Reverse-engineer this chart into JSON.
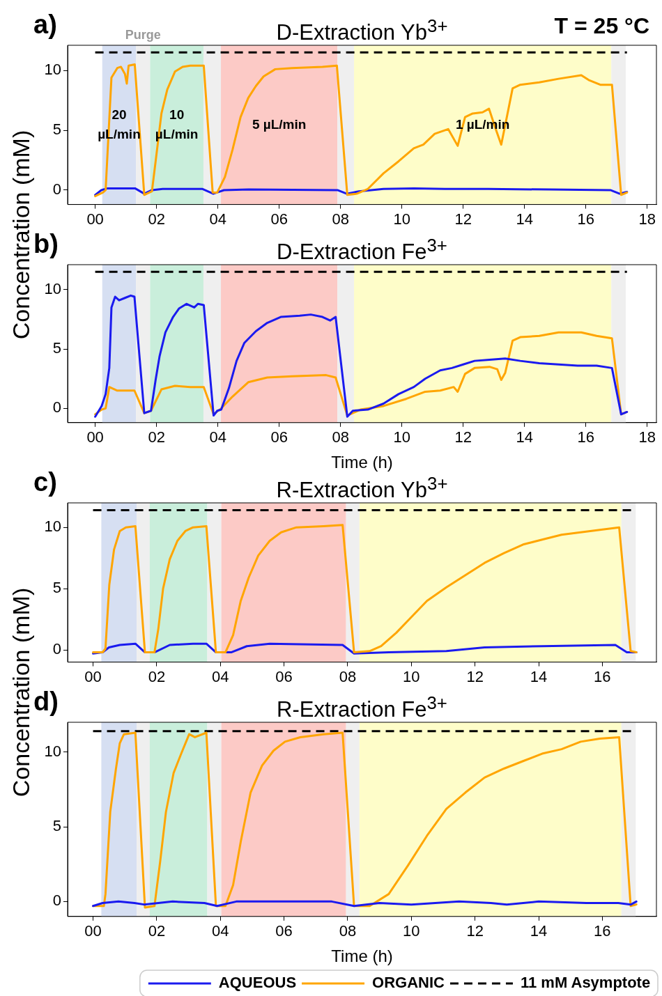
{
  "chart_data": [
    {
      "type": "line",
      "title": "D-Extraction Yb$^{3+}$",
      "ylabel": "Concentration (mM)",
      "annotations": [
        "a)",
        "T = 25 °C"
      ],
      "xlim": [
        -0.9,
        18.3
      ],
      "ylim": [
        -1.2,
        12.1
      ],
      "xticks": [
        {
          "value": 0,
          "label": "00"
        },
        {
          "value": 2,
          "label": "02"
        },
        {
          "value": 4,
          "label": "04"
        },
        {
          "value": 6,
          "label": "06"
        },
        {
          "value": 8,
          "label": "08"
        },
        10,
        12,
        14,
        16,
        18
      ],
      "yticks": [
        0,
        5,
        10
      ],
      "grid": false,
      "legend": false,
      "marker": "none",
      "line_style": "solid",
      "bands": [
        {
          "axis": "x",
          "from": 0.23,
          "to": 1.33,
          "color": "#d6dff2",
          "label": "20 µL/min"
        },
        {
          "axis": "x",
          "from": 1.33,
          "to": 1.79,
          "color": "#efefef",
          "label": "Purge"
        },
        {
          "axis": "x",
          "from": 1.79,
          "to": 3.53,
          "color": "#c9eedb",
          "label": "10 µL/min"
        },
        {
          "axis": "x",
          "from": 3.53,
          "to": 4.1,
          "color": "#efefef"
        },
        {
          "axis": "x",
          "from": 4.1,
          "to": 7.9,
          "color": "#fccac6",
          "label": "5 µL/min"
        },
        {
          "axis": "x",
          "from": 7.9,
          "to": 8.44,
          "color": "#efefef"
        },
        {
          "axis": "x",
          "from": 8.44,
          "to": 16.83,
          "color": "#fefdc9",
          "label": "1 µL/min"
        },
        {
          "axis": "x",
          "from": 16.83,
          "to": 17.3,
          "color": "#efefef"
        }
      ],
      "ref_lines": [
        {
          "axis": "y",
          "value": 11.5,
          "color": "#000000",
          "line_style": "dashed"
        }
      ],
      "series": [
        {
          "color": "#ffa500",
          "x": [
            0,
            0.25,
            0.34,
            0.53,
            0.72,
            0.84,
            0.97,
            1.03,
            1.09,
            1.29,
            1.6,
            1.85,
            1.97,
            2.16,
            2.35,
            2.6,
            2.85,
            3.1,
            3.54,
            3.83,
            3.98,
            4.23,
            4.48,
            4.74,
            4.99,
            5.24,
            5.49,
            5.87,
            6.42,
            7.41,
            7.88,
            8.22,
            8.53,
            8.89,
            9.4,
            9.89,
            10.39,
            10.7,
            11.07,
            11.51,
            11.82,
            12.06,
            12.31,
            12.63,
            12.84,
            13.06,
            13.24,
            13.43,
            13.61,
            13.86,
            14.48,
            15.11,
            15.85,
            16.09,
            16.47,
            16.85,
            17.15,
            17.34
          ],
          "values": [
            -0.5,
            -0.2,
            0,
            9.4,
            10.2,
            10.3,
            9.7,
            8.9,
            10.4,
            10.5,
            -0.4,
            -0.1,
            2.4,
            6.4,
            8.4,
            9.9,
            10.3,
            10.4,
            10.4,
            -0.2,
            -0.2,
            1.1,
            3.4,
            6.1,
            7.7,
            8.7,
            9.5,
            10.1,
            10.2,
            10.3,
            10.4,
            -0.4,
            -0.3,
            0.1,
            1.4,
            2.4,
            3.5,
            3.8,
            4.7,
            5.1,
            3.7,
            6.1,
            6.4,
            6.5,
            6.8,
            5.1,
            3.8,
            6.2,
            8.5,
            8.8,
            9.0,
            9.3,
            9.6,
            9.2,
            8.8,
            8.8,
            -0.4,
            -0.2
          ]
        },
        {
          "color": "#1a1aef",
          "x": [
            0,
            0.2,
            0.4,
            1.3,
            1.6,
            1.85,
            2.2,
            3.5,
            3.85,
            4.2,
            5,
            7.9,
            8.2,
            8.6,
            9.4,
            10.4,
            11.4,
            12.8,
            14.8,
            16.8,
            17.1,
            17.34
          ],
          "values": [
            -0.4,
            0,
            0.15,
            0.15,
            -0.3,
            0,
            0.1,
            0.1,
            -0.3,
            0,
            0.05,
            0,
            -0.3,
            -0.1,
            0.1,
            0.15,
            0.1,
            0.1,
            0.05,
            0,
            -0.3,
            -0.15
          ]
        }
      ]
    },
    {
      "type": "line",
      "title": "D-Extraction Fe$^{3+}$",
      "xlabel": "Time (h)",
      "annotations": [
        "b)"
      ],
      "xlim": [
        -0.9,
        18.3
      ],
      "ylim": [
        -1.2,
        12.1
      ],
      "xticks": [
        {
          "value": 0,
          "label": "00"
        },
        {
          "value": 2,
          "label": "02"
        },
        {
          "value": 4,
          "label": "04"
        },
        {
          "value": 6,
          "label": "06"
        },
        {
          "value": 8,
          "label": "08"
        },
        10,
        12,
        14,
        16,
        18
      ],
      "yticks": [
        0,
        5,
        10
      ],
      "grid": false,
      "legend": false,
      "marker": "none",
      "line_style": "solid",
      "bands": [
        {
          "axis": "x",
          "from": 0.23,
          "to": 1.33,
          "color": "#d6dff2"
        },
        {
          "axis": "x",
          "from": 1.33,
          "to": 1.79,
          "color": "#efefef"
        },
        {
          "axis": "x",
          "from": 1.79,
          "to": 3.53,
          "color": "#c9eedb"
        },
        {
          "axis": "x",
          "from": 3.53,
          "to": 4.1,
          "color": "#efefef"
        },
        {
          "axis": "x",
          "from": 4.1,
          "to": 7.9,
          "color": "#fccac6"
        },
        {
          "axis": "x",
          "from": 7.9,
          "to": 8.44,
          "color": "#efefef"
        },
        {
          "axis": "x",
          "from": 8.44,
          "to": 16.83,
          "color": "#fefdc9"
        },
        {
          "axis": "x",
          "from": 16.83,
          "to": 17.3,
          "color": "#efefef"
        }
      ],
      "ref_lines": [
        {
          "axis": "y",
          "value": 11.5,
          "color": "#000000",
          "line_style": "dashed"
        }
      ],
      "series": [
        {
          "color": "#1a1aef",
          "x": [
            0,
            0.21,
            0.34,
            0.46,
            0.53,
            0.65,
            0.78,
            0.97,
            1.16,
            1.28,
            1.6,
            1.82,
            1.97,
            2.1,
            2.29,
            2.54,
            2.73,
            2.98,
            3.23,
            3.35,
            3.54,
            3.86,
            3.98,
            4.11,
            4.36,
            4.61,
            4.86,
            5.24,
            5.61,
            6.05,
            6.67,
            7.03,
            7.41,
            7.66,
            7.84,
            8.22,
            8.4,
            8.89,
            9.4,
            9.89,
            10.39,
            10.76,
            11.25,
            11.63,
            12.0,
            12.37,
            12.86,
            13.37,
            13.86,
            14.48,
            15.11,
            15.73,
            16.35,
            16.85,
            17.15,
            17.34
          ],
          "values": [
            -0.7,
            0.2,
            1.2,
            3.4,
            8.5,
            9.4,
            9.1,
            9.3,
            9.5,
            9.4,
            -0.4,
            -0.2,
            2.4,
            4.4,
            6.4,
            7.7,
            8.4,
            8.8,
            8.5,
            8.8,
            8.7,
            -0.6,
            -0.2,
            -0.1,
            1.7,
            4.0,
            5.5,
            6.5,
            7.2,
            7.7,
            7.8,
            7.9,
            7.7,
            7.4,
            7.7,
            -0.7,
            -0.2,
            -0.1,
            0.4,
            1.2,
            1.8,
            2.5,
            3.2,
            3.4,
            3.7,
            4.0,
            4.1,
            4.2,
            4.0,
            3.8,
            3.7,
            3.6,
            3.6,
            3.4,
            -0.5,
            -0.3
          ]
        },
        {
          "color": "#ffa500",
          "x": [
            0,
            0.21,
            0.34,
            0.46,
            0.72,
            0.97,
            1.28,
            1.6,
            1.82,
            2.16,
            2.6,
            3.1,
            3.54,
            3.86,
            4.11,
            4.48,
            4.99,
            5.61,
            6.42,
            7.53,
            7.84,
            8.22,
            8.65,
            9.4,
            10.14,
            10.76,
            11.25,
            11.69,
            11.82,
            12.06,
            12.37,
            12.86,
            13.11,
            13.24,
            13.37,
            13.61,
            13.86,
            14.48,
            15.11,
            15.85,
            16.35,
            16.85,
            17.15,
            17.34
          ],
          "values": [
            -0.5,
            -0.1,
            0,
            1.8,
            1.5,
            1.5,
            1.5,
            -0.4,
            -0.2,
            1.6,
            1.9,
            1.8,
            1.8,
            -0.5,
            0,
            1.0,
            2.2,
            2.6,
            2.7,
            2.8,
            2.6,
            -0.6,
            -0.1,
            0.2,
            0.8,
            1.4,
            1.5,
            1.8,
            1.4,
            2.9,
            3.4,
            3.5,
            3.3,
            2.4,
            3.0,
            5.7,
            6.0,
            6.1,
            6.4,
            6.4,
            6.1,
            5.9,
            -0.5,
            -0.3
          ]
        }
      ]
    },
    {
      "type": "line",
      "title": "R-Extraction Yb$^{3+}$",
      "ylabel": "Concentration (mM)",
      "annotations": [
        "c)"
      ],
      "xlim": [
        -0.8,
        17.7
      ],
      "ylim": [
        -1,
        12
      ],
      "xticks": [
        {
          "value": 0,
          "label": "00"
        },
        {
          "value": 2,
          "label": "02"
        },
        {
          "value": 4,
          "label": "04"
        },
        {
          "value": 6,
          "label": "06"
        },
        {
          "value": 8,
          "label": "08"
        },
        10,
        12,
        14,
        16
      ],
      "yticks": [
        0,
        5,
        10
      ],
      "grid": false,
      "legend": false,
      "marker": "none",
      "line_style": "solid",
      "bands": [
        {
          "axis": "x",
          "from": 0.26,
          "to": 1.37,
          "color": "#d6dff2"
        },
        {
          "axis": "x",
          "from": 1.37,
          "to": 1.78,
          "color": "#efefef"
        },
        {
          "axis": "x",
          "from": 1.78,
          "to": 3.59,
          "color": "#c9eedb"
        },
        {
          "axis": "x",
          "from": 3.59,
          "to": 4.03,
          "color": "#efefef"
        },
        {
          "axis": "x",
          "from": 4.03,
          "to": 7.95,
          "color": "#fccac6"
        },
        {
          "axis": "x",
          "from": 7.95,
          "to": 8.37,
          "color": "#efefef"
        },
        {
          "axis": "x",
          "from": 8.37,
          "to": 16.6,
          "color": "#fefdc9"
        },
        {
          "axis": "x",
          "from": 16.6,
          "to": 17.05,
          "color": "#efefef"
        }
      ],
      "ref_lines": [
        {
          "axis": "y",
          "value": 11.4,
          "color": "#000000",
          "line_style": "dashed"
        }
      ],
      "series": [
        {
          "color": "#ffa500",
          "x": [
            0,
            0.3,
            0.39,
            0.51,
            0.66,
            0.84,
            1.03,
            1.33,
            1.63,
            1.93,
            2.05,
            2.2,
            2.41,
            2.65,
            2.9,
            3.14,
            3.56,
            3.86,
            4.16,
            4.4,
            4.64,
            4.89,
            5.19,
            5.55,
            5.91,
            6.39,
            7.24,
            7.84,
            8.2,
            8.69,
            9.05,
            9.53,
            10.01,
            10.49,
            11.1,
            11.7,
            12.3,
            12.91,
            13.51,
            14.11,
            14.72,
            15.32,
            15.92,
            16.53,
            16.89,
            17.07
          ],
          "values": [
            -0.2,
            -0.2,
            0.1,
            5.3,
            8.2,
            9.7,
            10.0,
            10.1,
            -0.2,
            -0.2,
            1.7,
            5.0,
            7.4,
            8.9,
            9.7,
            10.0,
            10.1,
            -0.2,
            -0.2,
            1.2,
            4.0,
            5.9,
            7.7,
            8.9,
            9.6,
            10.0,
            10.1,
            10.2,
            -0.2,
            -0.1,
            0.3,
            1.4,
            2.7,
            4.0,
            5.1,
            6.1,
            7.1,
            7.9,
            8.6,
            9.0,
            9.4,
            9.6,
            9.8,
            10.0,
            -0.1,
            -0.2
          ]
        },
        {
          "color": "#1a1aef",
          "x": [
            0,
            0.3,
            0.5,
            0.84,
            1.33,
            1.63,
            1.93,
            2.41,
            3.14,
            3.56,
            3.86,
            4.34,
            4.83,
            5.55,
            7.84,
            8.2,
            9.29,
            11.1,
            12.3,
            14.11,
            16.41,
            16.77,
            17.07
          ],
          "values": [
            -0.3,
            -0.2,
            0.2,
            0.4,
            0.5,
            -0.2,
            -0.2,
            0.4,
            0.5,
            0.5,
            -0.2,
            -0.2,
            0.3,
            0.5,
            0.4,
            -0.3,
            -0.2,
            -0.1,
            0.2,
            0.3,
            0.4,
            -0.2,
            -0.2
          ]
        }
      ]
    },
    {
      "type": "line",
      "title": "R-Extraction Fe$^{3+}$",
      "xlabel": "Time (h)",
      "annotations": [
        "d)"
      ],
      "xlim": [
        -0.8,
        17.7
      ],
      "ylim": [
        -1,
        12
      ],
      "xticks": [
        {
          "value": 0,
          "label": "00"
        },
        {
          "value": 2,
          "label": "02"
        },
        {
          "value": 4,
          "label": "04"
        },
        {
          "value": 6,
          "label": "06"
        },
        {
          "value": 8,
          "label": "08"
        },
        10,
        12,
        14,
        16
      ],
      "yticks": [
        0,
        5,
        10
      ],
      "grid": false,
      "legend": "bottom right",
      "marker": "none",
      "line_style": "solid",
      "bands": [
        {
          "axis": "x",
          "from": 0.26,
          "to": 1.37,
          "color": "#d6dff2"
        },
        {
          "axis": "x",
          "from": 1.37,
          "to": 1.78,
          "color": "#efefef"
        },
        {
          "axis": "x",
          "from": 1.78,
          "to": 3.59,
          "color": "#c9eedb"
        },
        {
          "axis": "x",
          "from": 3.59,
          "to": 4.03,
          "color": "#efefef"
        },
        {
          "axis": "x",
          "from": 4.03,
          "to": 7.95,
          "color": "#fccac6"
        },
        {
          "axis": "x",
          "from": 7.95,
          "to": 8.37,
          "color": "#efefef"
        },
        {
          "axis": "x",
          "from": 8.37,
          "to": 16.6,
          "color": "#fefdc9"
        },
        {
          "axis": "x",
          "from": 16.6,
          "to": 17.05,
          "color": "#efefef"
        }
      ],
      "ref_lines": [
        {
          "axis": "y",
          "value": 11.4,
          "color": "#000000",
          "line_style": "dashed",
          "label": "11 mM Asymptote"
        }
      ],
      "series": [
        {
          "name": "AQUEOUS",
          "color": "#1a1aef",
          "x": [
            0,
            0.3,
            0.8,
            1.3,
            1.6,
            2.5,
            3.5,
            3.9,
            4.5,
            6,
            7.5,
            8.2,
            9,
            10,
            11.5,
            12.5,
            13,
            14,
            15.5,
            16.5,
            16.9,
            17.07
          ],
          "values": [
            -0.3,
            -0.1,
            0,
            -0.1,
            -0.2,
            0,
            -0.1,
            -0.3,
            0,
            0,
            0,
            -0.3,
            -0.1,
            -0.2,
            0,
            -0.1,
            -0.2,
            0,
            -0.1,
            -0.1,
            -0.2,
            0
          ]
        },
        {
          "name": "ORGANIC",
          "color": "#ffa500",
          "x": [
            0,
            0.34,
            0.39,
            0.54,
            0.72,
            0.84,
            0.97,
            1.33,
            1.63,
            1.93,
            2.11,
            2.29,
            2.53,
            2.77,
            3.02,
            3.2,
            3.56,
            3.86,
            4.16,
            4.4,
            4.64,
            4.95,
            5.31,
            5.67,
            6.03,
            6.51,
            7.24,
            7.84,
            8.2,
            8.69,
            9.29,
            9.89,
            10.49,
            11.1,
            11.7,
            12.3,
            12.91,
            13.51,
            14.11,
            14.72,
            15.32,
            15.92,
            16.53,
            16.89,
            17.07
          ],
          "values": [
            -0.3,
            -0.3,
            0.5,
            6.0,
            8.9,
            10.6,
            11.2,
            11.3,
            -0.4,
            -0.3,
            2.7,
            6.0,
            8.6,
            9.9,
            11.2,
            11.0,
            11.3,
            -0.3,
            -0.3,
            1.1,
            4.0,
            7.3,
            9.1,
            10.1,
            10.7,
            11.0,
            11.2,
            11.3,
            -0.3,
            -0.3,
            0.5,
            2.4,
            4.4,
            6.2,
            7.3,
            8.3,
            8.9,
            9.4,
            9.9,
            10.2,
            10.7,
            10.9,
            11.0,
            -0.3,
            -0.2
          ]
        }
      ]
    }
  ]
}
